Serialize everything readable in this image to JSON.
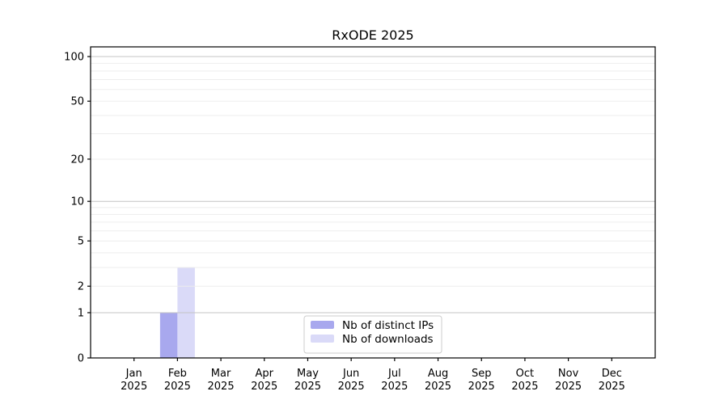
{
  "title": "RxODE 2025",
  "colors": {
    "background": "#ffffff",
    "axis": "#000000",
    "grid_major": "#c4c4c4",
    "grid_minor": "#ededed",
    "legend_border": "#cccccc",
    "legend_background": "#ffffff",
    "text": "#000000"
  },
  "chart_data": {
    "type": "bar",
    "title": "RxODE 2025",
    "categories": [
      "Jan",
      "Feb",
      "Mar",
      "Apr",
      "May",
      "Jun",
      "Jul",
      "Aug",
      "Sep",
      "Oct",
      "Nov",
      "Dec"
    ],
    "category_sublabel": "2025",
    "series": [
      {
        "name": "Nb of distinct IPs",
        "color": "#a8a8ee",
        "values": [
          0,
          1,
          0,
          0,
          0,
          0,
          0,
          0,
          0,
          0,
          0,
          0
        ]
      },
      {
        "name": "Nb of downloads",
        "color": "#dadaf8",
        "values": [
          0,
          3,
          0,
          0,
          0,
          0,
          0,
          0,
          0,
          0,
          0,
          0
        ]
      }
    ],
    "xlabel": "",
    "ylabel": "",
    "yscale": "log1p",
    "ylim": [
      0,
      100
    ],
    "yticks": [
      0,
      1,
      2,
      5,
      10,
      20,
      50,
      100
    ],
    "grid_minor_values": [
      2,
      3,
      4,
      5,
      6,
      7,
      8,
      9,
      20,
      30,
      40,
      50,
      60,
      70,
      80,
      90
    ],
    "grid_major_values": [
      1,
      10,
      100
    ],
    "grid": "horizontal-only",
    "legend_position": "bottom-center-inside"
  }
}
